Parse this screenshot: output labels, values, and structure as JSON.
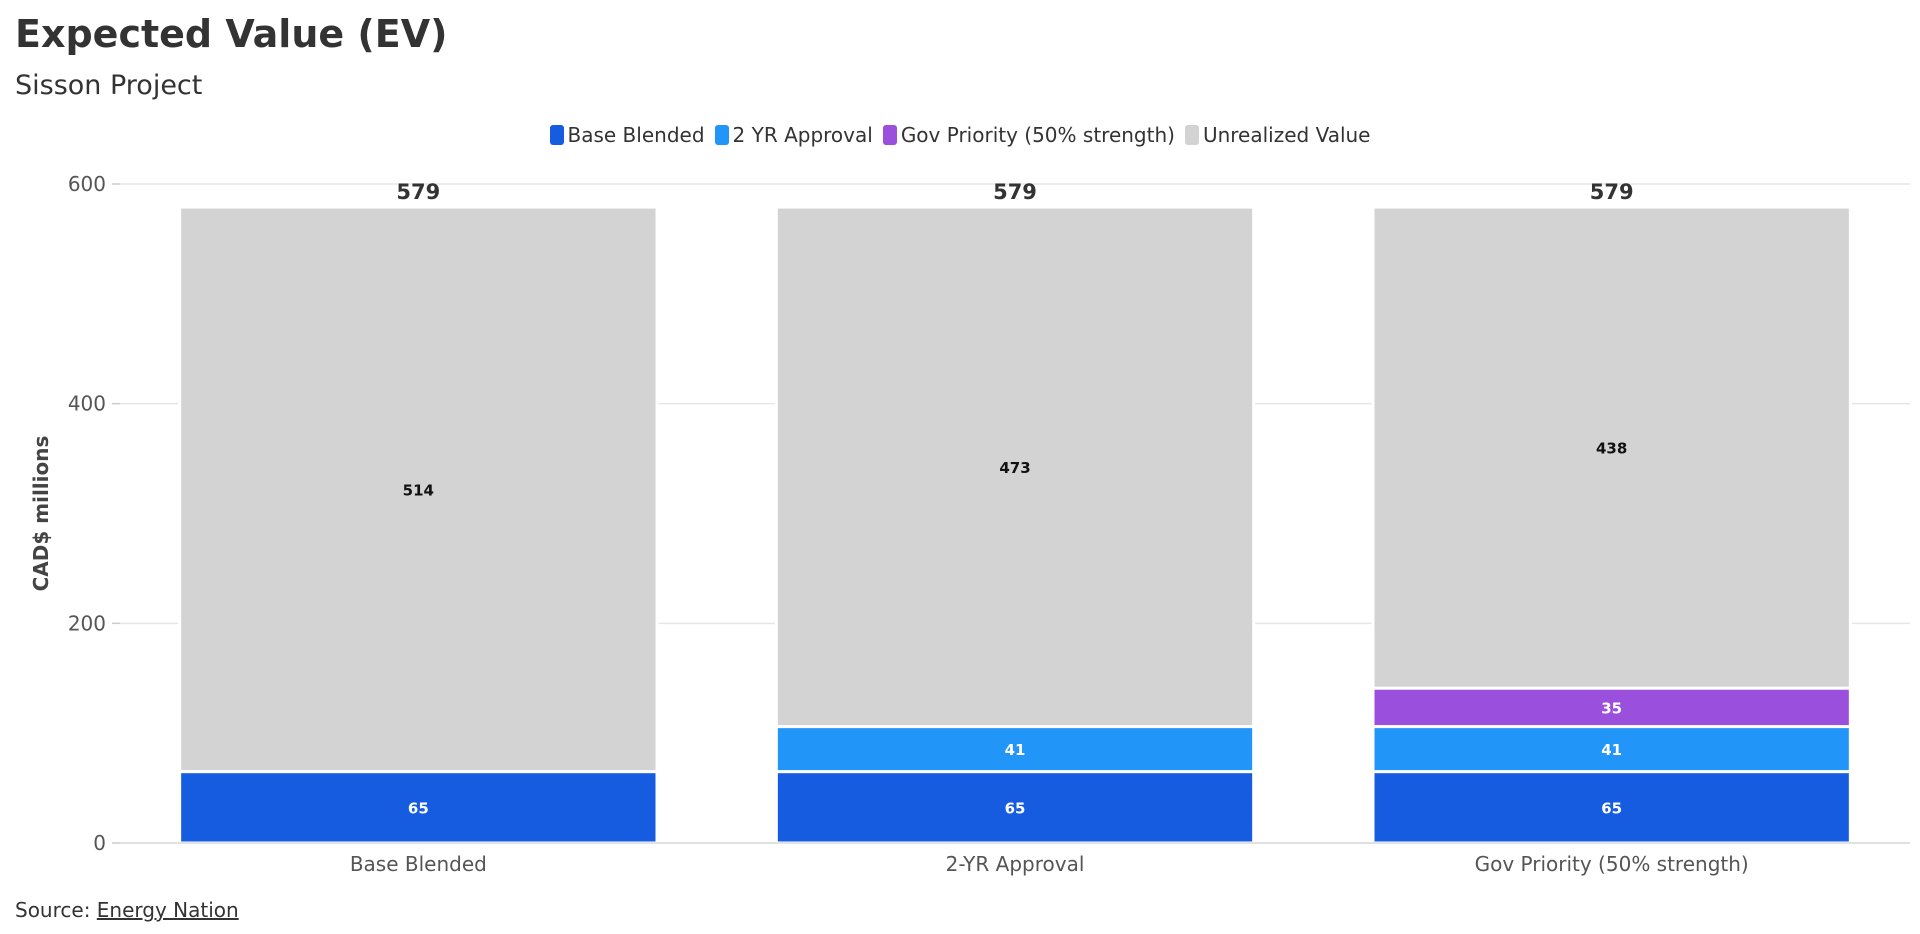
{
  "header": {
    "title": "Expected Value (EV)",
    "subtitle": "Sisson Project"
  },
  "legend": [
    {
      "label": "Base Blended",
      "color": "#165ce0"
    },
    {
      "label": "2 YR Approval",
      "color": "#2196f8"
    },
    {
      "label": "Gov Priority (50% strength)",
      "color": "#9b4fdd"
    },
    {
      "label": "Unrealized Value",
      "color": "#d3d3d3"
    }
  ],
  "footer": {
    "source_prefix": "Source: ",
    "source_link": "Energy Nation"
  },
  "chart_data": {
    "type": "bar",
    "stacked": true,
    "categories": [
      "Base Blended",
      "2-YR Approval",
      "Gov Priority (50% strength)"
    ],
    "series": [
      {
        "name": "Base Blended",
        "color": "#165ce0",
        "values": [
          65,
          65,
          65
        ]
      },
      {
        "name": "2 YR Approval",
        "color": "#2196f8",
        "values": [
          0,
          41,
          41
        ]
      },
      {
        "name": "Gov Priority (50% strength)",
        "color": "#9b4fdd",
        "values": [
          0,
          0,
          35
        ]
      },
      {
        "name": "Unrealized Value",
        "color": "#d3d3d3",
        "values": [
          514,
          473,
          438
        ]
      }
    ],
    "totals": [
      579,
      579,
      579
    ],
    "ylabel": "CAD$ millions",
    "xlabel": "",
    "ylim": [
      0,
      600
    ],
    "yticks": [
      0,
      200,
      400,
      600
    ],
    "grid": true,
    "legend_position": "top-center"
  }
}
